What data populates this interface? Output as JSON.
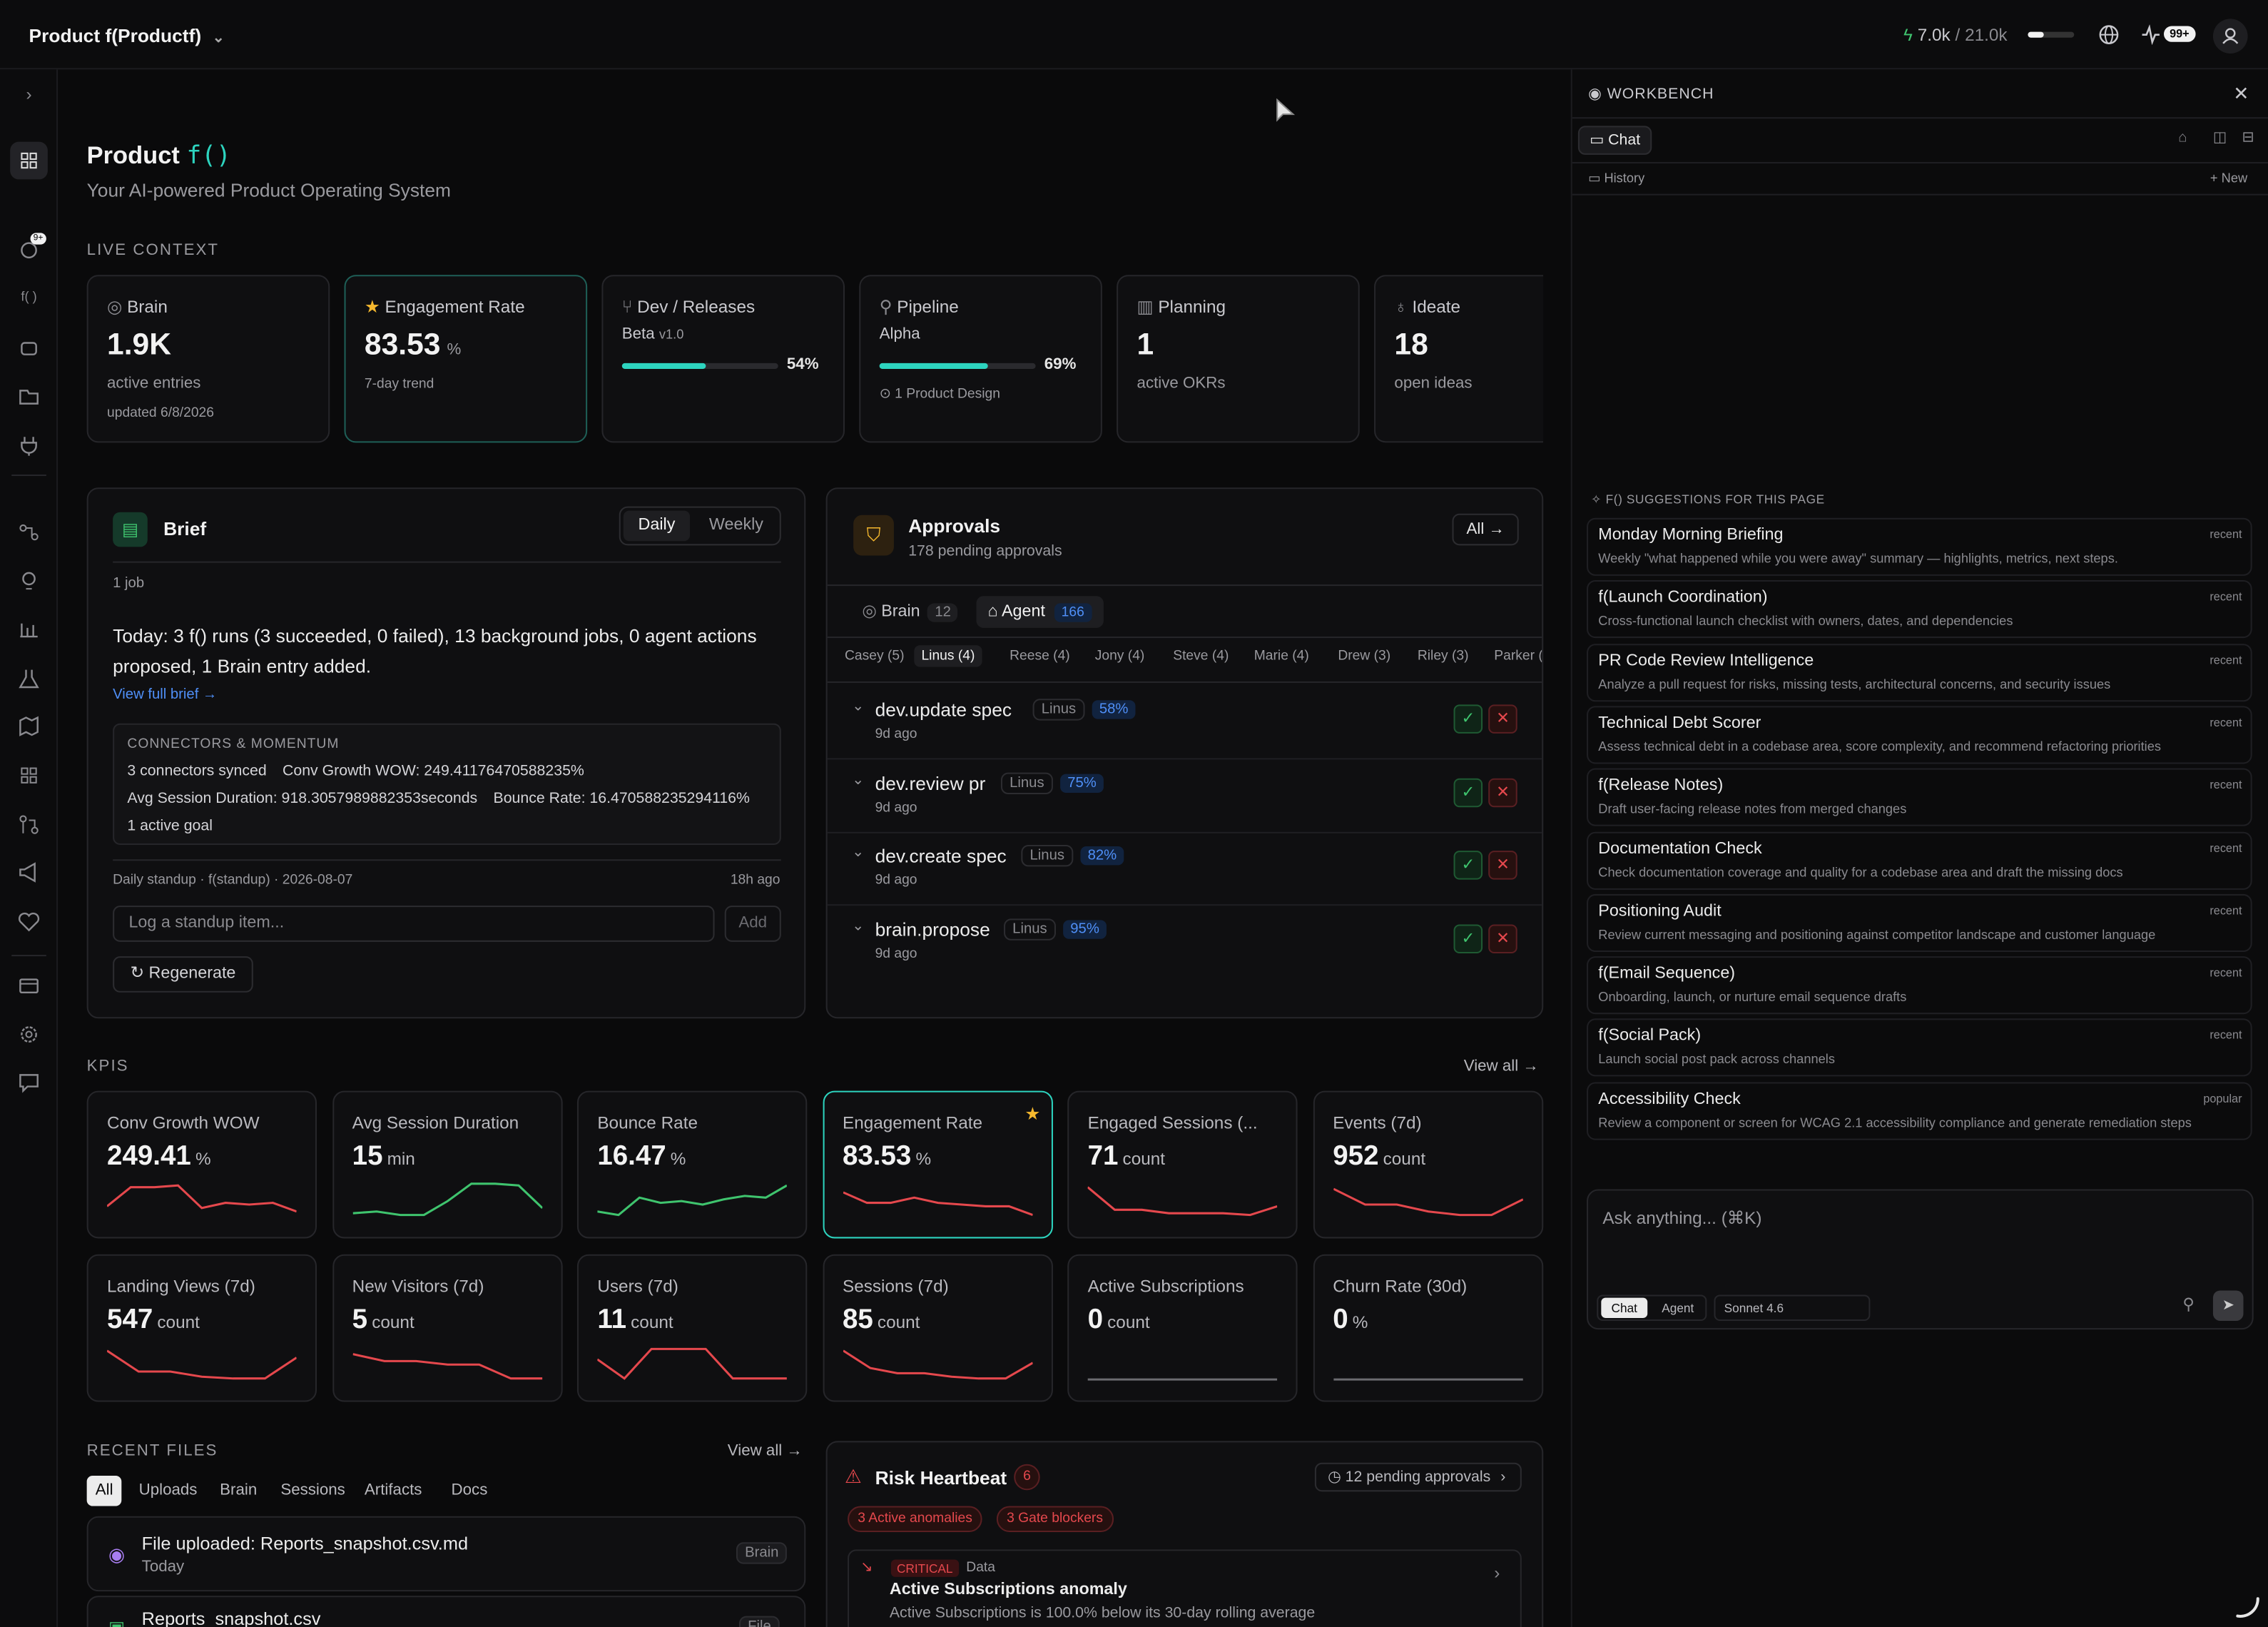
{
  "header": {
    "product_label": "Product f(Productf)",
    "credits_used": "7.0k",
    "credits_sep": "/",
    "credits_total": "21.0k",
    "credits_fraction": 0.33,
    "notif_badge": "99+",
    "icons": [
      "bolt-icon",
      "globe-icon",
      "activity-icon",
      "user-icon"
    ]
  },
  "sidebar": {
    "badge": "9+",
    "fn_label": "f( )",
    "icons": [
      "chevron-right-icon",
      "dashboard-icon",
      "brain-icon",
      "function-icon",
      "robot-icon",
      "folder-icon",
      "plug-icon",
      "route-icon",
      "bulb-icon",
      "bar-chart-icon",
      "flask-icon",
      "map-icon",
      "grid-icon",
      "git-pull-icon",
      "megaphone-icon",
      "heart-pulse-icon",
      "card-icon",
      "gear-icon",
      "chat-icon"
    ]
  },
  "page": {
    "title": "Product",
    "title_fn": "f()",
    "subtitle": "Your AI-powered Product Operating System"
  },
  "live_context": {
    "heading": "LIVE CONTEXT",
    "brain": {
      "label": "Brain",
      "value": "1.9K",
      "sub": "active entries",
      "meta": "updated 6/8/2026"
    },
    "engagement": {
      "label": "Engagement Rate",
      "value": "83.53",
      "unit": "%",
      "sub": "7-day trend"
    },
    "dev": {
      "label": "Dev / Releases",
      "stage": "Beta",
      "version": "v1.0",
      "percent_label": "54%",
      "progress": 0.54
    },
    "pipeline": {
      "label": "Pipeline",
      "stage": "Alpha",
      "percent_label": "69%",
      "progress": 0.69,
      "meta": "1 Product Design"
    },
    "planning": {
      "label": "Planning",
      "value": "1",
      "sub": "active OKRs"
    },
    "ideate": {
      "label": "Ideate",
      "value": "18",
      "sub": "open ideas"
    }
  },
  "brief": {
    "title": "Brief",
    "tab_daily": "Daily",
    "tab_weekly": "Weekly",
    "jobs": "1 job",
    "summary": "Today: 3 f() runs (3 succeeded, 0 failed), 13 background jobs, 0 agent actions proposed, 1 Brain entry added.",
    "view_full": "View full brief →",
    "connectors": {
      "heading": "CONNECTORS & MOMENTUM",
      "line1a": "3 connectors synced",
      "line1b": "Conv Growth WOW: 249.41176470588235%",
      "line2a": "Avg Session Duration: 918.3057989882353seconds",
      "line2b": "Bounce Rate: 16.470588235294116%",
      "line3": "1 active goal"
    },
    "standup_label": "Daily standup · f(standup) · 2026-08-07",
    "standup_time": "18h ago",
    "standup_placeholder": "Log a standup item...",
    "add_label": "Add",
    "regenerate": "Regenerate"
  },
  "approvals": {
    "title": "Approvals",
    "sub": "178 pending approvals",
    "all_label": "All →",
    "tab_brain": "Brain",
    "tab_brain_count": "12",
    "tab_agent": "Agent",
    "tab_agent_count": "166",
    "people": [
      "Casey (5)",
      "Linus (4)",
      "Reese (4)",
      "Jony (4)",
      "Steve (4)",
      "Marie (4)",
      "Drew (3)",
      "Riley (3)",
      "Parker (3"
    ],
    "items": [
      {
        "name": "dev.update spec",
        "who": "Linus",
        "pct": "58%",
        "age": "9d ago"
      },
      {
        "name": "dev.review pr",
        "who": "Linus",
        "pct": "75%",
        "age": "9d ago"
      },
      {
        "name": "dev.create spec",
        "who": "Linus",
        "pct": "82%",
        "age": "9d ago"
      },
      {
        "name": "brain.propose",
        "who": "Linus",
        "pct": "95%",
        "age": "9d ago"
      }
    ]
  },
  "kpis": {
    "heading": "KPIS",
    "view_all": "View all →",
    "cards": [
      {
        "label": "Conv Growth WOW",
        "value": "249.41",
        "unit": "%",
        "color": "#e5484d",
        "trend": [
          0.3,
          0.85,
          0.85,
          0.9,
          0.25,
          0.4,
          0.35,
          0.4,
          0.15
        ]
      },
      {
        "label": "Avg Session Duration",
        "value": "15",
        "unit": "min",
        "color": "#3fc46e",
        "trend": [
          0.1,
          0.15,
          0.05,
          0.05,
          0.45,
          0.95,
          0.95,
          0.9,
          0.25
        ]
      },
      {
        "label": "Bounce Rate",
        "value": "16.47",
        "unit": "%",
        "color": "#3fc46e",
        "trend": [
          0.15,
          0.05,
          0.55,
          0.4,
          0.45,
          0.35,
          0.5,
          0.6,
          0.55,
          0.9
        ]
      },
      {
        "label": "Engagement Rate",
        "value": "83.53",
        "unit": "%",
        "color": "#e5484d",
        "trend": [
          0.7,
          0.4,
          0.4,
          0.55,
          0.4,
          0.35,
          0.3,
          0.3,
          0.05
        ]
      },
      {
        "label": "Engaged Sessions (...",
        "value": "71",
        "unit": "count",
        "color": "#e5484d",
        "trend": [
          0.85,
          0.2,
          0.2,
          0.1,
          0.1,
          0.1,
          0.05,
          0.3
        ]
      },
      {
        "label": "Events (7d)",
        "value": "952",
        "unit": "count",
        "color": "#e5484d",
        "trend": [
          0.8,
          0.35,
          0.35,
          0.15,
          0.05,
          0.05,
          0.5
        ]
      },
      {
        "label": "Landing Views (7d)",
        "value": "547",
        "unit": "count",
        "color": "#e5484d",
        "trend": [
          0.85,
          0.25,
          0.25,
          0.1,
          0.05,
          0.05,
          0.65
        ]
      },
      {
        "label": "New Visitors (7d)",
        "value": "5",
        "unit": "count",
        "color": "#e5484d",
        "trend": [
          0.75,
          0.55,
          0.55,
          0.45,
          0.45,
          0.05,
          0.05
        ]
      },
      {
        "label": "Users (7d)",
        "value": "11",
        "unit": "count",
        "color": "#e5484d",
        "trend": [
          0.6,
          0.05,
          0.9,
          0.9,
          0.9,
          0.05,
          0.05,
          0.05
        ]
      },
      {
        "label": "Sessions (7d)",
        "value": "85",
        "unit": "count",
        "color": "#e5484d",
        "trend": [
          0.85,
          0.35,
          0.2,
          0.2,
          0.1,
          0.05,
          0.05,
          0.5
        ]
      },
      {
        "label": "Active Subscriptions",
        "value": "0",
        "unit": "count",
        "color": "#6b6b70",
        "trend": [
          0.02,
          0.02
        ]
      },
      {
        "label": "Churn Rate (30d)",
        "value": "0",
        "unit": "%",
        "color": "#6b6b70",
        "trend": [
          0.02,
          0.02
        ]
      }
    ]
  },
  "recent_files": {
    "heading": "RECENT FILES",
    "view_all": "View all →",
    "tabs": [
      "All",
      "Uploads",
      "Brain",
      "Sessions",
      "Artifacts",
      "Docs"
    ],
    "items": [
      {
        "name": "File uploaded: Reports_snapshot.csv.md",
        "date": "Today",
        "tag": "Brain"
      },
      {
        "name": "Reports_snapshot.csv",
        "date": "",
        "tag": "File"
      }
    ]
  },
  "risk": {
    "title": "Risk Heartbeat",
    "count": "6",
    "pending": "12 pending approvals",
    "anomalies": "3 Active anomalies",
    "blockers": "3 Gate blockers",
    "item": {
      "severity": "CRITICAL",
      "category": "Data",
      "title": "Active Subscriptions anomaly",
      "desc": "Active Subscriptions is 100.0% below its 30-day rolling average"
    }
  },
  "workbench": {
    "title": "WORKBENCH",
    "tab_chat": "Chat",
    "history": "History",
    "new": "New",
    "suggestions_heading": "F() SUGGESTIONS FOR THIS PAGE",
    "suggestions": [
      {
        "title": "Monday Morning Briefing",
        "desc": "Weekly \"what happened while you were away\" summary — highlights, metrics, next steps.",
        "badge": "recent"
      },
      {
        "title": "f(Launch Coordination)",
        "desc": "Cross-functional launch checklist with owners, dates, and dependencies",
        "badge": "recent"
      },
      {
        "title": "PR Code Review Intelligence",
        "desc": "Analyze a pull request for risks, missing tests, architectural concerns, and security issues",
        "badge": "recent"
      },
      {
        "title": "Technical Debt Scorer",
        "desc": "Assess technical debt in a codebase area, score complexity, and recommend refactoring priorities",
        "badge": "recent"
      },
      {
        "title": "f(Release Notes)",
        "desc": "Draft user-facing release notes from merged changes",
        "badge": "recent"
      },
      {
        "title": "Documentation Check",
        "desc": "Check documentation coverage and quality for a codebase area and draft the missing docs",
        "badge": "recent"
      },
      {
        "title": "Positioning Audit",
        "desc": "Review current messaging and positioning against competitor landscape and customer language",
        "badge": "recent"
      },
      {
        "title": "f(Email Sequence)",
        "desc": "Onboarding, launch, or nurture email sequence drafts",
        "badge": "recent"
      },
      {
        "title": "f(Social Pack)",
        "desc": "Launch social post pack across channels",
        "badge": "recent"
      },
      {
        "title": "Accessibility Check",
        "desc": "Review a component or screen for WCAG 2.1 accessibility compliance and generate remediation steps",
        "badge": "popular"
      }
    ],
    "composer": {
      "placeholder": "Ask anything... (⌘K)",
      "mode_chat": "Chat",
      "mode_agent": "Agent",
      "model": "Sonnet 4.6"
    }
  },
  "colors": {
    "accent": "#2dd4bf",
    "danger": "#e5484d",
    "success": "#3fc46e",
    "info": "#4f8ff7",
    "star": "#f5b82e"
  }
}
